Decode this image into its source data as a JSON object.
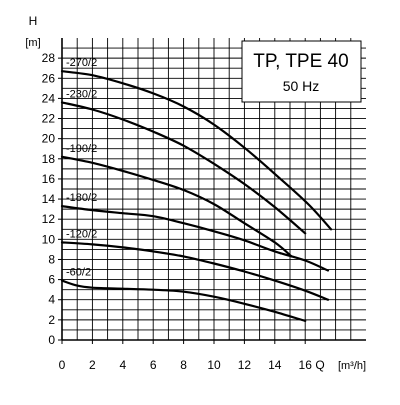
{
  "chart_data": {
    "type": "line",
    "title": "TP, TPE 40",
    "subtitle": "50 Hz",
    "ylabel_symbol": "H",
    "ylabel_unit": "[m]",
    "xlabel_symbol": "Q",
    "xlabel_unit": "[m³/h]",
    "xlim": [
      0,
      16
    ],
    "ylim": [
      0,
      28
    ],
    "x_ticks": [
      "0",
      "2",
      "4",
      "6",
      "8",
      "10",
      "12",
      "14",
      "16"
    ],
    "y_ticks": [
      "0",
      "2",
      "4",
      "6",
      "8",
      "10",
      "12",
      "14",
      "16",
      "18",
      "20",
      "22",
      "24",
      "26",
      "28"
    ],
    "grid": true,
    "series": [
      {
        "name": "-270/2",
        "points": [
          [
            0,
            26.7
          ],
          [
            2,
            26.3
          ],
          [
            4,
            25.5
          ],
          [
            6,
            24.5
          ],
          [
            8,
            23.2
          ],
          [
            10,
            21.4
          ],
          [
            12,
            19.1
          ],
          [
            14,
            16.5
          ],
          [
            16.2,
            13.5
          ],
          [
            17.7,
            11.0
          ]
        ]
      },
      {
        "name": "-230/2",
        "points": [
          [
            0,
            23.6
          ],
          [
            2,
            22.9
          ],
          [
            4,
            21.9
          ],
          [
            6,
            20.7
          ],
          [
            8,
            19.3
          ],
          [
            10,
            17.5
          ],
          [
            12,
            15.5
          ],
          [
            14,
            13.2
          ],
          [
            16,
            10.6
          ]
        ]
      },
      {
        "name": "-190/2",
        "points": [
          [
            0,
            18.2
          ],
          [
            2,
            17.6
          ],
          [
            4,
            16.8
          ],
          [
            6,
            15.9
          ],
          [
            8,
            14.9
          ],
          [
            10,
            13.5
          ],
          [
            12,
            11.6
          ],
          [
            14,
            9.7
          ],
          [
            15.1,
            8.3
          ]
        ]
      },
      {
        "name": "-180/2",
        "points": [
          [
            0,
            13.3
          ],
          [
            2,
            12.9
          ],
          [
            4,
            12.6
          ],
          [
            6,
            12.3
          ],
          [
            8,
            11.6
          ],
          [
            10,
            10.8
          ],
          [
            12,
            9.9
          ],
          [
            14,
            8.8
          ],
          [
            16,
            7.9
          ],
          [
            17.5,
            6.9
          ]
        ]
      },
      {
        "name": "-120/2",
        "points": [
          [
            0,
            9.7
          ],
          [
            2,
            9.5
          ],
          [
            4,
            9.2
          ],
          [
            6,
            8.8
          ],
          [
            8,
            8.3
          ],
          [
            10,
            7.6
          ],
          [
            12,
            6.8
          ],
          [
            14,
            5.9
          ],
          [
            16,
            4.9
          ],
          [
            17.5,
            4.0
          ]
        ]
      },
      {
        "name": "-60/2",
        "points": [
          [
            0,
            5.9
          ],
          [
            1,
            5.4
          ],
          [
            2,
            5.2
          ],
          [
            4,
            5.1
          ],
          [
            6,
            5.0
          ],
          [
            8,
            4.8
          ],
          [
            10,
            4.3
          ],
          [
            12,
            3.6
          ],
          [
            14,
            2.8
          ],
          [
            16,
            1.9
          ]
        ]
      }
    ],
    "colors": {
      "line": "#000000",
      "grid": "#000000",
      "background": "#ffffff"
    }
  }
}
